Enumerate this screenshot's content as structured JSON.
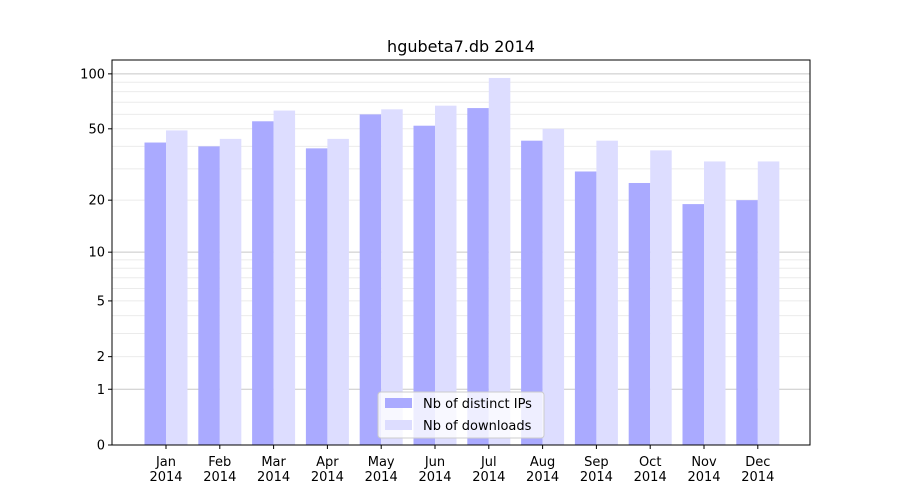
{
  "chart_data": {
    "type": "bar",
    "title": "hgubeta7.db 2014",
    "xlabel": "",
    "ylabel": "",
    "yscale": "log10(y+1)",
    "ylim": [
      0,
      119
    ],
    "yticks": [
      0,
      1,
      2,
      5,
      10,
      20,
      50,
      100
    ],
    "grid": true,
    "legend_position": "bottom-center",
    "categories": [
      "Jan\n2014",
      "Feb\n2014",
      "Mar\n2014",
      "Apr\n2014",
      "May\n2014",
      "Jun\n2014",
      "Jul\n2014",
      "Aug\n2014",
      "Sep\n2014",
      "Oct\n2014",
      "Nov\n2014",
      "Dec\n2014"
    ],
    "series": [
      {
        "name": "Nb of distinct IPs",
        "color": "#aaaaff",
        "values": [
          42,
          40,
          55,
          39,
          60,
          52,
          65,
          43,
          29,
          25,
          19,
          20
        ]
      },
      {
        "name": "Nb of downloads",
        "color": "#ddddff",
        "values": [
          49,
          44,
          63,
          44,
          64,
          67,
          95,
          50,
          43,
          38,
          33,
          33
        ]
      }
    ]
  }
}
